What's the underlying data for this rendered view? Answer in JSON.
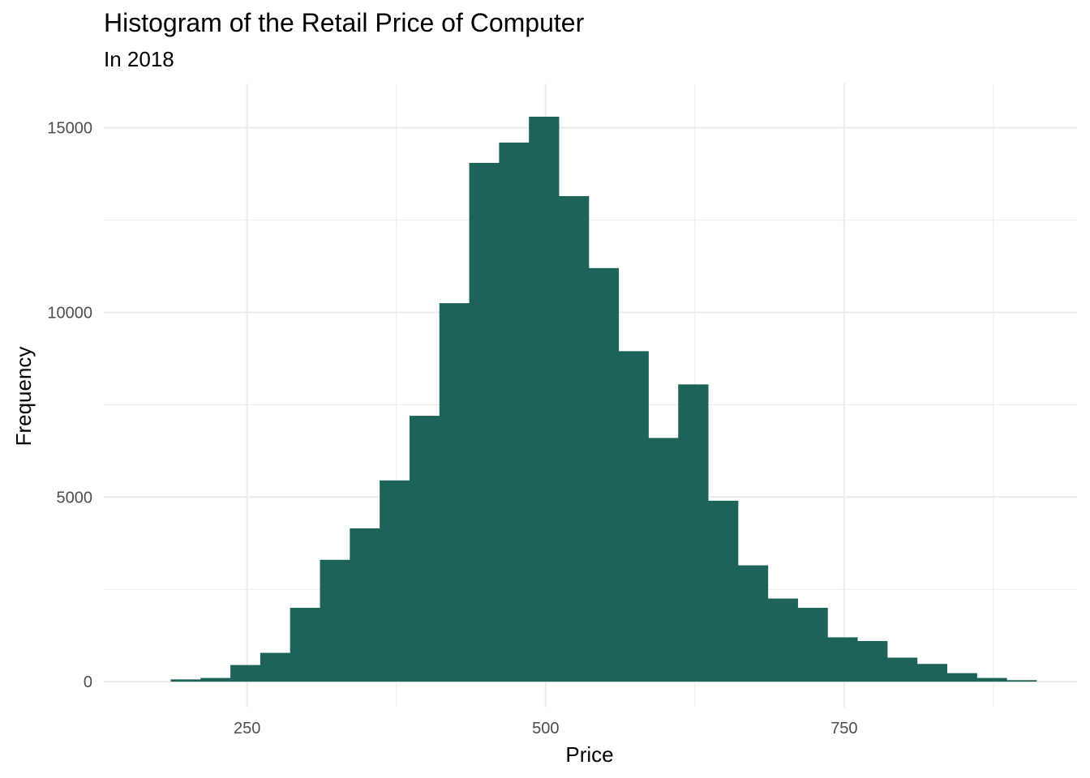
{
  "colors": {
    "bar": "#1e6359",
    "grid": "#ebebeb",
    "tick_text": "#4d4d4d"
  },
  "chart_data": {
    "type": "bar",
    "title": "Histogram of the Retail Price of Computer",
    "subtitle": "In 2018",
    "xlabel": "Price",
    "ylabel": "Frequency",
    "xlim": [
      130,
      945
    ],
    "ylim": [
      -700,
      16200
    ],
    "x_ticks": [
      250,
      500,
      750
    ],
    "y_ticks": [
      0,
      5000,
      10000,
      15000
    ],
    "bin_width": 25,
    "bin_start": 186,
    "values": [
      60,
      100,
      450,
      780,
      2000,
      3300,
      4150,
      5450,
      7200,
      10250,
      14050,
      14600,
      15300,
      13150,
      11200,
      8950,
      6600,
      8050,
      4900,
      3150,
      2250,
      2000,
      1200,
      1100,
      650,
      480,
      230,
      100,
      40
    ]
  }
}
